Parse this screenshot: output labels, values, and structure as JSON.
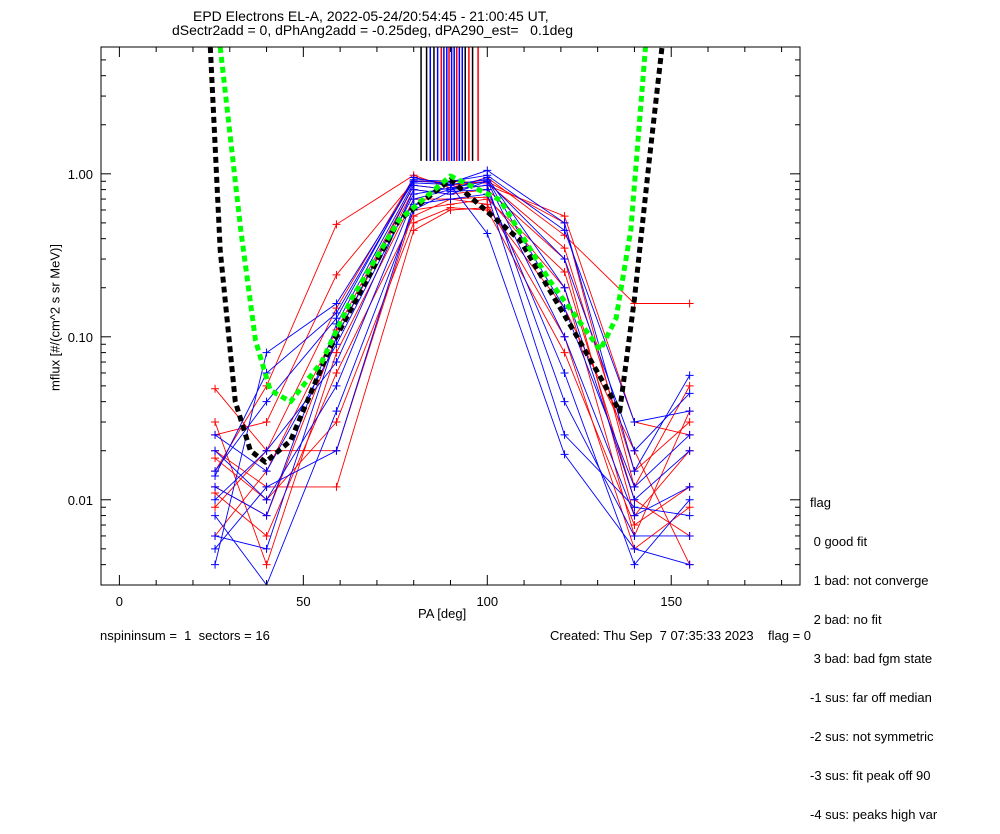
{
  "chart_data": {
    "type": "line",
    "title": [
      "EPD Electrons EL-A, 2022-05-24/20:54:45 - 21:00:45 UT,",
      "dSectr2add = 0, dPhAng2add = -0.25deg, dPA290_est=   0.1deg"
    ],
    "xlabel": "PA [deg]",
    "ylabel": "mflux [#/(cm^2 s sr MeV)]",
    "xlim": [
      -5,
      185
    ],
    "ylim": [
      0.003,
      6
    ],
    "yscale": "log",
    "xticks": [
      0,
      50,
      100,
      150
    ],
    "xtick_labels": [
      "0",
      "50",
      "100",
      "150"
    ],
    "yticks": [
      0.01,
      0.1,
      1
    ],
    "ytick_labels": [
      "0.01",
      "0.10",
      "1.00"
    ],
    "pa_samples": [
      26,
      40,
      59,
      80,
      90,
      100,
      121,
      140,
      155
    ],
    "series_red": [
      [
        0.048,
        0.02,
        0.15,
        0.95,
        0.85,
        0.9,
        0.5,
        0.012,
        0.05
      ],
      [
        0.012,
        0.008,
        0.1,
        0.8,
        0.75,
        0.8,
        0.3,
        0.008,
        0.02
      ],
      [
        0.03,
        0.004,
        0.08,
        0.7,
        0.7,
        0.72,
        0.2,
        0.006,
        0.035
      ],
      [
        0.015,
        0.05,
        0.49,
        0.98,
        0.82,
        0.95,
        0.42,
        0.16,
        0.16
      ],
      [
        0.02,
        0.012,
        0.012,
        0.45,
        0.6,
        0.62,
        0.15,
        0.02,
        0.004
      ],
      [
        0.009,
        0.02,
        0.02,
        0.6,
        0.65,
        0.7,
        0.25,
        0.01,
        0.006
      ],
      [
        0.025,
        0.03,
        0.24,
        0.9,
        0.9,
        0.88,
        0.35,
        0.015,
        0.03
      ],
      [
        0.011,
        0.006,
        0.06,
        0.55,
        0.7,
        0.65,
        0.1,
        0.005,
        0.009
      ],
      [
        0.018,
        0.01,
        0.03,
        0.5,
        0.62,
        0.6,
        0.08,
        0.007,
        0.012
      ],
      [
        0.006,
        0.015,
        0.11,
        0.85,
        0.8,
        0.85,
        0.55,
        0.03,
        0.025
      ]
    ],
    "series_blue": [
      [
        0.004,
        0.08,
        0.16,
        0.9,
        0.88,
        1.05,
        0.5,
        0.015,
        0.058
      ],
      [
        0.006,
        0.005,
        0.1,
        0.85,
        0.8,
        0.95,
        0.2,
        0.01,
        0.02
      ],
      [
        0.01,
        0.02,
        0.07,
        0.8,
        0.75,
        0.9,
        0.1,
        0.008,
        0.012
      ],
      [
        0.015,
        0.04,
        0.13,
        0.95,
        0.85,
        0.43,
        0.019,
        0.005,
        0.004
      ],
      [
        0.02,
        0.01,
        0.05,
        0.7,
        0.8,
        0.85,
        0.04,
        0.006,
        0.006
      ],
      [
        0.025,
        0.015,
        0.09,
        0.75,
        0.82,
        0.9,
        0.3,
        0.02,
        0.045
      ],
      [
        0.008,
        0.003,
        0.035,
        0.6,
        0.78,
        0.8,
        0.06,
        0.004,
        0.01
      ],
      [
        0.012,
        0.008,
        0.12,
        0.88,
        0.86,
        0.92,
        0.15,
        0.012,
        0.025
      ],
      [
        0.005,
        0.012,
        0.02,
        0.65,
        0.7,
        0.75,
        0.025,
        0.009,
        0.008
      ],
      [
        0.014,
        0.06,
        0.14,
        0.92,
        0.9,
        0.98,
        0.45,
        0.03,
        0.035
      ]
    ],
    "fit_green": [
      [
        27.4,
        6
      ],
      [
        33,
        0.45
      ],
      [
        37,
        0.095
      ],
      [
        41,
        0.047
      ],
      [
        46.5,
        0.04
      ],
      [
        55,
        0.07
      ],
      [
        63,
        0.17
      ],
      [
        76,
        0.52
      ],
      [
        90,
        0.97
      ],
      [
        103.5,
        0.69
      ],
      [
        117,
        0.22
      ],
      [
        130.7,
        0.083
      ],
      [
        135,
        0.13
      ],
      [
        139,
        0.45
      ],
      [
        143,
        6
      ]
    ],
    "fit_black": [
      [
        24.7,
        6
      ],
      [
        27.4,
        0.34
      ],
      [
        31.5,
        0.04
      ],
      [
        35.6,
        0.02
      ],
      [
        39.7,
        0.017
      ],
      [
        46.5,
        0.023
      ],
      [
        57,
        0.083
      ],
      [
        76,
        0.52
      ],
      [
        90,
        0.92
      ],
      [
        109,
        0.39
      ],
      [
        125,
        0.095
      ],
      [
        136,
        0.035
      ],
      [
        140,
        0.17
      ],
      [
        144,
        1.2
      ],
      [
        147.5,
        6
      ]
    ],
    "peak_markers": [
      {
        "pa": 82,
        "color": "#000000"
      },
      {
        "pa": 83.5,
        "color": "#000000"
      },
      {
        "pa": 84.5,
        "color": "#0000ff"
      },
      {
        "pa": 85.5,
        "color": "#000000"
      },
      {
        "pa": 86.5,
        "color": "#0000ff"
      },
      {
        "pa": 87.5,
        "color": "#ff0000"
      },
      {
        "pa": 88.2,
        "color": "#0000ff"
      },
      {
        "pa": 89,
        "color": "#0000ff"
      },
      {
        "pa": 89.6,
        "color": "#ff0000"
      },
      {
        "pa": 90.3,
        "color": "#0000ff"
      },
      {
        "pa": 91,
        "color": "#0000ff"
      },
      {
        "pa": 91.7,
        "color": "#ff0000"
      },
      {
        "pa": 92.4,
        "color": "#0000ff"
      },
      {
        "pa": 93.2,
        "color": "#0000ff"
      },
      {
        "pa": 94,
        "color": "#000000"
      },
      {
        "pa": 95,
        "color": "#ff0000"
      },
      {
        "pa": 96,
        "color": "#000000"
      },
      {
        "pa": 97.5,
        "color": "#ff0000"
      }
    ],
    "peak_marker_bottom": 1.2,
    "colors": {
      "red": "#ff0000",
      "blue": "#0000ff",
      "green": "#00ff00",
      "black": "#000000"
    },
    "legend": {
      "title": "flag",
      "entries": [
        " 0 good fit",
        " 1 bad: not converge",
        " 2 bad: no fit",
        " 3 bad: bad fgm state",
        "-1 sus: far off median",
        "-2 sus: not symmetric",
        "-3 sus: fit peak off 90",
        "-4 sus: peaks high var"
      ],
      "placement": "right-bottom"
    }
  },
  "footer": {
    "left": "nspininsum =  1  sectors = 16",
    "right": "Created: Thu Sep  7 07:35:33 2023    flag = 0"
  }
}
